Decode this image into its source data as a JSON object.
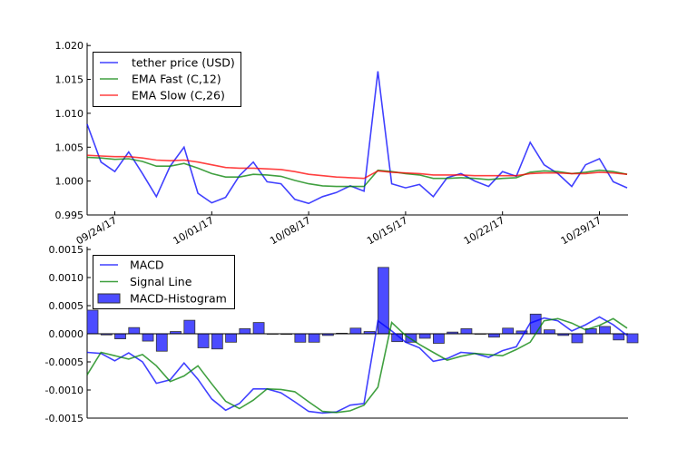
{
  "chart_data": [
    {
      "type": "line",
      "title": "",
      "xlabel": "",
      "ylabel": "",
      "ylim": [
        0.995,
        1.02
      ],
      "y_ticks": [
        "1.020",
        "1.015",
        "1.010",
        "1.005",
        "1.000",
        "0.995"
      ],
      "y_tick_values": [
        1.02,
        1.015,
        1.01,
        1.005,
        1.0,
        0.995
      ],
      "x_ticks": [
        "09/24/17",
        "10/01/17",
        "10/08/17",
        "10/15/17",
        "10/22/17",
        "10/29/17"
      ],
      "x_tick_index": [
        2,
        9,
        16,
        23,
        30,
        37
      ],
      "x_start": "09/22/17",
      "legend_position": "top-left",
      "series": [
        {
          "name": "tether price (USD)",
          "color": "#0000ff",
          "values": [
            1.0084,
            1.0028,
            1.0014,
            1.0043,
            1.0011,
            0.9977,
            1.0022,
            1.005,
            0.9982,
            0.9968,
            0.9976,
            1.0008,
            1.0028,
            0.9999,
            0.9996,
            0.9973,
            0.9967,
            0.9977,
            0.9983,
            0.9993,
            0.9985,
            1.0162,
            0.9996,
            0.999,
            0.9995,
            0.9977,
            1.0005,
            1.0011,
            1.0,
            0.9992,
            1.0014,
            1.0007,
            1.0057,
            1.0024,
            1.0011,
            0.9992,
            1.0024,
            1.0033,
            0.9999,
            0.999
          ]
        },
        {
          "name": "EMA Fast (C,12)",
          "color": "#008000",
          "values": [
            1.0035,
            1.0034,
            1.0032,
            1.0033,
            1.0029,
            1.0022,
            1.0022,
            1.0026,
            1.0019,
            1.0011,
            1.0006,
            1.0006,
            1.001,
            1.0009,
            1.0007,
            1.0001,
            0.9996,
            0.9993,
            0.9992,
            0.9992,
            0.9992,
            1.0016,
            1.0014,
            1.0011,
            1.0009,
            1.0004,
            1.0004,
            1.0005,
            1.0004,
            1.0002,
            1.0004,
            1.0005,
            1.0013,
            1.0015,
            1.0014,
            1.0011,
            1.0013,
            1.0016,
            1.0014,
            1.001
          ]
        },
        {
          "name": "EMA Slow (C,26)",
          "color": "#ff0000",
          "values": [
            1.0038,
            1.0037,
            1.0036,
            1.0036,
            1.0034,
            1.0031,
            1.003,
            1.0031,
            1.0028,
            1.0024,
            1.002,
            1.0019,
            1.0019,
            1.0018,
            1.0017,
            1.0014,
            1.001,
            1.0008,
            1.0006,
            1.0005,
            1.0004,
            1.0015,
            1.0013,
            1.0012,
            1.0011,
            1.0009,
            1.0009,
            1.0009,
            1.0008,
            1.0008,
            1.0008,
            1.0008,
            1.0011,
            1.0012,
            1.0012,
            1.0011,
            1.0011,
            1.0013,
            1.0012,
            1.001
          ]
        }
      ]
    },
    {
      "type": "bar+line",
      "title": "",
      "xlabel": "",
      "ylabel": "",
      "ylim": [
        -0.0015,
        0.0015
      ],
      "y_ticks": [
        "0.0015",
        "0.0010",
        "0.0005",
        "0.0000",
        "-0.0005",
        "-0.0010",
        "-0.0015"
      ],
      "y_tick_values": [
        0.0015,
        0.001,
        0.0005,
        0.0,
        -0.0005,
        -0.001,
        -0.0015
      ],
      "legend_position": "top-left",
      "series": [
        {
          "name": "MACD",
          "kind": "line",
          "color": "#0000ff",
          "values": [
            -0.00033,
            -0.00035,
            -0.00048,
            -0.00034,
            -0.0005,
            -0.00088,
            -0.00082,
            -0.00052,
            -0.00081,
            -0.00116,
            -0.00136,
            -0.00124,
            -0.00098,
            -0.00098,
            -0.00105,
            -0.00121,
            -0.00138,
            -0.00141,
            -0.00139,
            -0.00127,
            -0.00124,
            0.00023,
            5e-05,
            -0.00015,
            -0.00025,
            -0.00049,
            -0.00044,
            -0.00033,
            -0.00035,
            -0.00042,
            -0.0003,
            -0.00023,
            0.00019,
            0.00028,
            0.00023,
            5e-05,
            0.00016,
            0.0003,
            0.00016,
            -3e-05
          ]
        },
        {
          "name": "Signal Line",
          "kind": "line",
          "color": "#008000",
          "values": [
            -0.00073,
            -0.00033,
            -0.00039,
            -0.00045,
            -0.00037,
            -0.00057,
            -0.00085,
            -0.00075,
            -0.00057,
            -0.00089,
            -0.0012,
            -0.00133,
            -0.00118,
            -0.00098,
            -0.00099,
            -0.00103,
            -0.00121,
            -0.00138,
            -0.0014,
            -0.00137,
            -0.00127,
            -0.00095,
            0.0002,
            -3e-05,
            -0.00019,
            -0.00033,
            -0.00047,
            -0.0004,
            -0.00035,
            -0.00037,
            -0.00039,
            -0.00028,
            -0.00015,
            0.00023,
            0.00027,
            0.00019,
            7e-05,
            0.00015,
            0.00027,
            0.0001
          ]
        },
        {
          "name": "MACD-Histogram",
          "kind": "bar",
          "color": "#0000ff",
          "values": [
            0.00042,
            -2e-05,
            -9e-05,
            0.00011,
            -0.00013,
            -0.00031,
            4e-05,
            0.00024,
            -0.00025,
            -0.00027,
            -0.00015,
            9e-05,
            0.0002,
            0.0,
            -1e-05,
            -0.00015,
            -0.00015,
            -3e-05,
            1e-05,
            0.0001,
            4e-05,
            0.00118,
            -0.00014,
            -0.00015,
            -8e-05,
            -0.00017,
            3e-05,
            9e-05,
            0.0,
            -6e-05,
            0.0001,
            5e-05,
            0.00035,
            7e-05,
            -3e-05,
            -0.00016,
            9e-05,
            0.00013,
            -0.00011,
            -0.00016
          ]
        }
      ]
    }
  ]
}
